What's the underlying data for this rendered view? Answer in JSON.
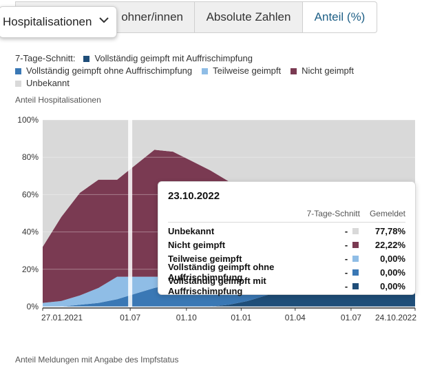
{
  "toggles": {
    "dropdown_label": "Hospitalisationen",
    "partial_label": "ohner/innen",
    "absolute_label": "Absolute Zahlen",
    "share_label": "Anteil (%)"
  },
  "legend": {
    "prefix": "7-Tage-Schnitt:",
    "items": [
      {
        "label": "Vollständig geimpft mit Auffrischimpfung",
        "color": "#1f4e79"
      },
      {
        "label": "Vollständig geimpft ohne Auffrischimpfung",
        "color": "#3a78b5"
      },
      {
        "label": "Teilweise geimpft",
        "color": "#8fbde6"
      },
      {
        "label": "Nicht geimpft",
        "color": "#7a3a52"
      },
      {
        "label": "Unbekannt",
        "color": "#d9d9d9"
      }
    ]
  },
  "subtitle": "Anteil Hospitalisationen",
  "footer_note": "Anteil Meldungen mit Angabe des Impfstatus",
  "chart_data": {
    "type": "area",
    "stacked": true,
    "ylabel": "Anteil Hospitalisationen",
    "ylim": [
      0,
      100
    ],
    "y_ticks": [
      "0%",
      "20%",
      "40%",
      "60%",
      "80%",
      "100%"
    ],
    "x_ticks": [
      "27.01.2021",
      "01.07",
      "01.10",
      "01.01",
      "01.04",
      "01.07",
      "24.10.2022"
    ],
    "x_range": [
      "2021-01-27",
      "2022-10-24"
    ],
    "series": [
      {
        "name": "Vollständig geimpft mit Auffrischimpfung",
        "values": [
          0,
          0,
          0,
          0,
          0,
          0,
          0,
          0,
          0,
          0,
          1,
          3,
          6,
          9,
          12,
          14,
          15,
          16,
          17,
          18,
          18
        ]
      },
      {
        "name": "Vollständig geimpft ohne Auffrischimpfung",
        "values": [
          0,
          0,
          1,
          2,
          4,
          7,
          10,
          12,
          10,
          8,
          6,
          4,
          3,
          2,
          2,
          1,
          1,
          1,
          0,
          0,
          0
        ]
      },
      {
        "name": "Teilweise geimpft",
        "values": [
          2,
          3,
          5,
          8,
          12,
          9,
          6,
          4,
          3,
          2,
          2,
          1,
          1,
          1,
          1,
          1,
          0,
          0,
          0,
          0,
          0
        ]
      },
      {
        "name": "Nicht geimpft",
        "values": [
          30,
          45,
          55,
          58,
          52,
          60,
          68,
          67,
          65,
          63,
          58,
          52,
          47,
          42,
          38,
          34,
          30,
          28,
          26,
          24,
          22
        ]
      },
      {
        "name": "Unbekannt",
        "values": [
          68,
          52,
          39,
          32,
          32,
          24,
          16,
          17,
          22,
          27,
          33,
          40,
          43,
          46,
          47,
          50,
          54,
          55,
          57,
          58,
          60
        ]
      }
    ],
    "highlight_date": "01.07"
  },
  "tooltip": {
    "date": "23.10.2022",
    "col_avg": "7-Tage-Schnitt",
    "col_reported": "Gemeldet",
    "rows": [
      {
        "label": "Unbekannt",
        "avg": "-",
        "value": "77,78%",
        "color": "#d9d9d9"
      },
      {
        "label": "Nicht geimpft",
        "avg": "-",
        "value": "22,22%",
        "color": "#7a3a52"
      },
      {
        "label": "Teilweise geimpft",
        "avg": "-",
        "value": "0,00%",
        "color": "#8fbde6"
      },
      {
        "label": "Vollständig geimpft ohne Auffrischimpfung",
        "avg": "-",
        "value": "0,00%",
        "color": "#3a78b5"
      },
      {
        "label": "Vollständig geimpft mit Auffrischimpfung",
        "avg": "-",
        "value": "0,00%",
        "color": "#1f4e79"
      }
    ]
  }
}
